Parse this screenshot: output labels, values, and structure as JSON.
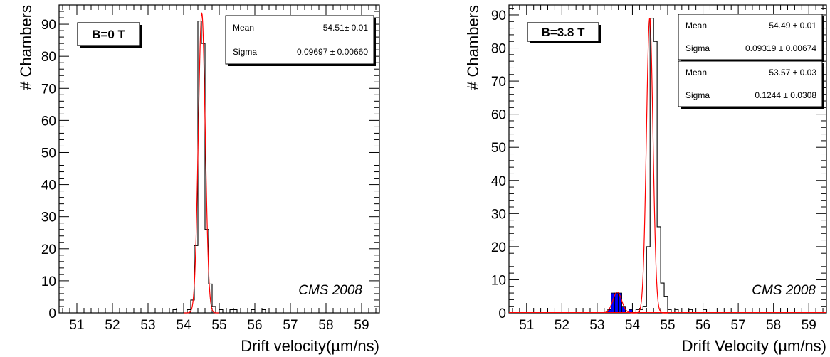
{
  "chart_data": [
    {
      "type": "bar",
      "label_box": "B=0 T",
      "annotation": "CMS 2008",
      "xlabel": "Drift velocity(µm/ns)",
      "ylabel": "# Chambers",
      "xlim": [
        50.5,
        59.5
      ],
      "ylim": [
        0,
        96
      ],
      "xticks": [
        "51",
        "52",
        "53",
        "54",
        "55",
        "56",
        "57",
        "58",
        "59"
      ],
      "yticks": [
        "0",
        "10",
        "20",
        "30",
        "40",
        "50",
        "60",
        "70",
        "80",
        "90"
      ],
      "bin_width": 0.1,
      "histograms": [
        {
          "style": "step",
          "color": "#000000",
          "bins": [
            [
              53.7,
              1
            ],
            [
              54.1,
              1
            ],
            [
              54.2,
              4
            ],
            [
              54.3,
              21
            ],
            [
              54.4,
              91
            ],
            [
              54.5,
              84
            ],
            [
              54.6,
              26
            ],
            [
              54.7,
              9
            ],
            [
              54.8,
              2
            ],
            [
              55.0,
              1
            ],
            [
              55.3,
              1
            ],
            [
              55.4,
              1
            ],
            [
              55.9,
              1
            ],
            [
              56.2,
              1
            ]
          ]
        }
      ],
      "fits": [
        {
          "color": "#ff0000",
          "mean": 54.51,
          "sigma": 0.09697,
          "amplitude": 93.5,
          "range": [
            54.0,
            55.0
          ]
        }
      ],
      "stats_boxes": [
        {
          "rows": [
            {
              "label": "Mean",
              "value": "54.51± 0.01"
            },
            {
              "label": "Sigma",
              "value": "0.09697 ± 0.00660"
            }
          ]
        }
      ]
    },
    {
      "type": "bar",
      "label_box": "B=3.8 T",
      "annotation": "CMS 2008",
      "xlabel": "Drift Velocity (µm/ns)",
      "ylabel": "# Chambers",
      "xlim": [
        50.5,
        59.5
      ],
      "ylim": [
        0,
        93
      ],
      "xticks": [
        "51",
        "52",
        "53",
        "54",
        "55",
        "56",
        "57",
        "58",
        "59"
      ],
      "yticks": [
        "0",
        "10",
        "20",
        "30",
        "40",
        "50",
        "60",
        "70",
        "80",
        "90"
      ],
      "bin_width": 0.1,
      "histograms": [
        {
          "style": "step",
          "color": "#000000",
          "bins": [
            [
              54.1,
              1
            ],
            [
              54.2,
              1
            ],
            [
              54.3,
              2
            ],
            [
              54.4,
              20
            ],
            [
              54.5,
              89
            ],
            [
              54.6,
              82
            ],
            [
              54.7,
              26
            ],
            [
              54.8,
              9
            ],
            [
              54.9,
              5
            ],
            [
              55.0,
              1
            ],
            [
              55.2,
              1
            ],
            [
              55.6,
              1
            ],
            [
              56.0,
              1
            ]
          ]
        },
        {
          "style": "filled",
          "color": "#0000ff",
          "bins": [
            [
              53.3,
              1
            ],
            [
              53.4,
              6
            ],
            [
              53.5,
              6
            ],
            [
              53.6,
              6
            ],
            [
              53.7,
              2
            ],
            [
              53.9,
              1
            ]
          ]
        }
      ],
      "fits": [
        {
          "color": "#ff0000",
          "mean": 54.49,
          "sigma": 0.09319,
          "amplitude": 89,
          "range": [
            54.0,
            55.0
          ]
        },
        {
          "color": "#ff0000",
          "mean": 53.57,
          "sigma": 0.1244,
          "amplitude": 6.3,
          "range": [
            53.2,
            54.0
          ]
        },
        {
          "color": "#ff0000",
          "flat": 0,
          "range": [
            50.5,
            59.5
          ]
        }
      ],
      "stats_boxes": [
        {
          "rows": [
            {
              "label": "Mean",
              "value": "54.49 ± 0.01"
            },
            {
              "label": "Sigma",
              "value": "0.09319 ± 0.00674"
            }
          ]
        },
        {
          "rows": [
            {
              "label": "Mean",
              "value": "53.57 ± 0.03"
            },
            {
              "label": "Sigma",
              "value": "0.1244 ± 0.0308"
            }
          ]
        }
      ]
    }
  ]
}
